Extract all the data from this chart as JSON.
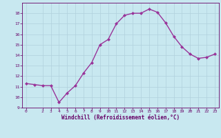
{
  "x": [
    0,
    1,
    2,
    3,
    4,
    5,
    6,
    7,
    8,
    9,
    10,
    11,
    12,
    13,
    14,
    15,
    16,
    17,
    18,
    19,
    20,
    21,
    22,
    23
  ],
  "y": [
    11.3,
    11.2,
    11.1,
    11.1,
    9.5,
    10.4,
    11.1,
    12.3,
    13.3,
    15.0,
    15.5,
    17.0,
    17.8,
    18.0,
    18.0,
    18.4,
    18.1,
    17.1,
    15.8,
    14.8,
    14.1,
    13.7,
    13.8,
    14.1
  ],
  "xlim": [
    -0.5,
    23.5
  ],
  "ylim": [
    9,
    19
  ],
  "yticks": [
    9,
    10,
    11,
    12,
    13,
    14,
    15,
    16,
    17,
    18
  ],
  "xticks": [
    0,
    2,
    3,
    4,
    5,
    6,
    7,
    8,
    9,
    10,
    11,
    12,
    13,
    14,
    15,
    16,
    17,
    18,
    19,
    20,
    21,
    22,
    23
  ],
  "xlabel": "Windchill (Refroidissement éolien,°C)",
  "line_color": "#993399",
  "marker_color": "#993399",
  "bg_color": "#c8e8f0",
  "grid_color": "#b0d0dc",
  "tick_color": "#660066",
  "label_color": "#660066",
  "font_name": "monospace"
}
